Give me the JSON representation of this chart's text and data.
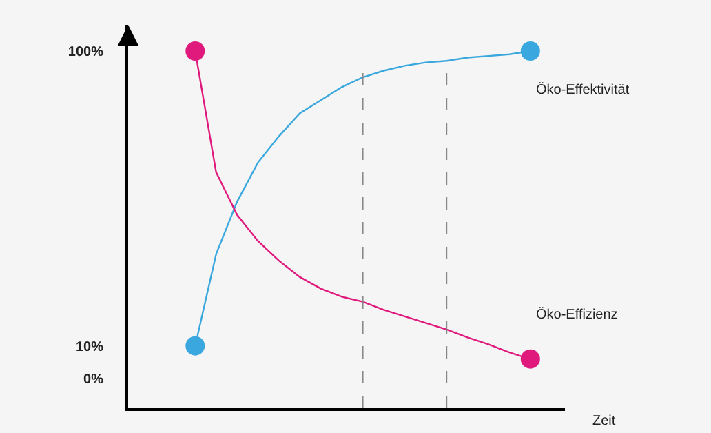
{
  "chart_data": {
    "type": "line",
    "xlabel": "Zeit",
    "categories": [
      null,
      null,
      null,
      null,
      null,
      null,
      null,
      null,
      null,
      null,
      null,
      null,
      null,
      null,
      null,
      null,
      null,
      null,
      null,
      null,
      null
    ],
    "ylim": [
      -9,
      108
    ],
    "yticks": [
      {
        "value": 0,
        "label": "0%"
      },
      {
        "value": 10,
        "label": "10%"
      },
      {
        "value": 100,
        "label": "100%"
      }
    ],
    "tick_labels": "y",
    "grid": false,
    "legend": false,
    "marker": "none",
    "line_style": "solid",
    "series": [
      {
        "name": "Öko-Effektivität",
        "color": "#3aa8de",
        "values": [
          null,
          null,
          null,
          10,
          38,
          54,
          66,
          74,
          81,
          85,
          89,
          92,
          94,
          95.5,
          96.5,
          97,
          98,
          98.5,
          99,
          100,
          null
        ]
      },
      {
        "name": "Öko-Effizienz",
        "color": "#e0197d",
        "values": [
          null,
          null,
          null,
          100,
          63,
          50,
          42,
          36,
          31,
          27.5,
          25,
          23.5,
          21,
          19,
          17,
          15,
          12.6,
          10.5,
          8,
          6,
          null
        ]
      },
      {
        "type": "scatter",
        "marker": "circle",
        "color": "#3aa8de",
        "values": [
          null,
          null,
          null,
          10,
          null,
          null,
          null,
          null,
          null,
          null,
          null,
          null,
          null,
          null,
          null,
          null,
          null,
          null,
          null,
          100,
          null
        ]
      },
      {
        "type": "scatter",
        "marker": "circle",
        "color": "#e0197d",
        "values": [
          null,
          null,
          null,
          100,
          null,
          null,
          null,
          null,
          null,
          null,
          null,
          null,
          null,
          null,
          null,
          null,
          null,
          null,
          null,
          6,
          null
        ]
      }
    ]
  }
}
